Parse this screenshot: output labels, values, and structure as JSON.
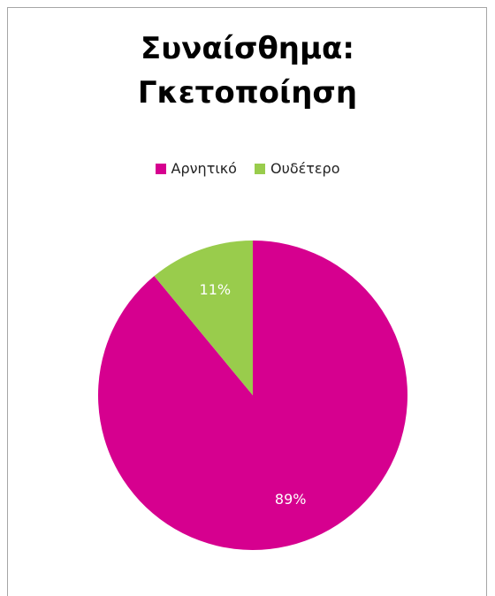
{
  "chart_data": {
    "type": "pie",
    "title_lines": [
      "Συναίσθημα:",
      "Γκετοποίηση"
    ],
    "slices": [
      {
        "label": "Αρνητικό",
        "value": 89,
        "value_label": "89%",
        "color": "#d6008f"
      },
      {
        "label": "Ουδέτερο",
        "value": 11,
        "value_label": "11%",
        "color": "#99cc4c"
      }
    ],
    "legend_position": "top"
  }
}
